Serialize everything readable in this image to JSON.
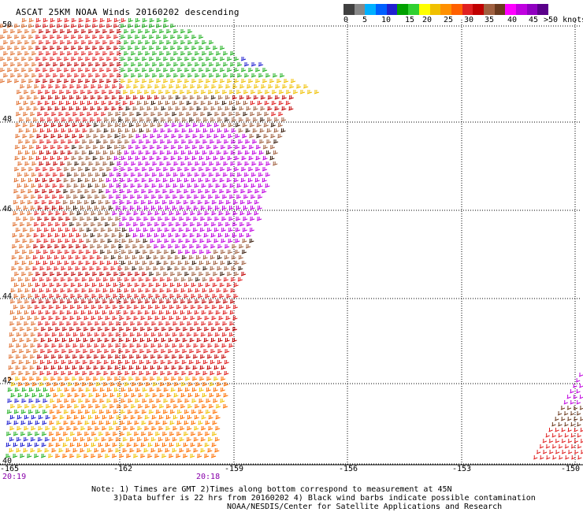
{
  "title": "ASCAT 25KM NOAA Winds 20160202 descending",
  "scale": {
    "colors": [
      "#404040",
      "#888888",
      "#00b0ff",
      "#0060ff",
      "#2020d0",
      "#00a000",
      "#30d030",
      "#ffff00",
      "#f0c000",
      "#ff9000",
      "#ff6000",
      "#e02020",
      "#c00000",
      "#a06040",
      "#6b3a1e",
      "#ff00ff",
      "#c000e0",
      "#9000c0",
      "#5a008a"
    ],
    "labels": [
      "0",
      "5",
      "10",
      "15",
      "20",
      "25",
      "30",
      "35",
      "40",
      "45",
      ">50 knots"
    ]
  },
  "lat_labels": [
    "50",
    "48",
    "46",
    "44",
    "42",
    "40"
  ],
  "lon_labels": [
    "-165",
    "-162",
    "-159",
    "-156",
    "-153",
    "-150"
  ],
  "time_labels": [
    "20:19",
    "20:18"
  ],
  "notes": [
    "Note: 1) Times are GMT 2)Times along bottom correspond to measurement at 45N",
    "3)Data buffer is 22 hrs from 20160202 4) Black wind barbs indicate possible contamination",
    "NOAA/NESDIS/Center for Satellite Applications and Research"
  ]
}
